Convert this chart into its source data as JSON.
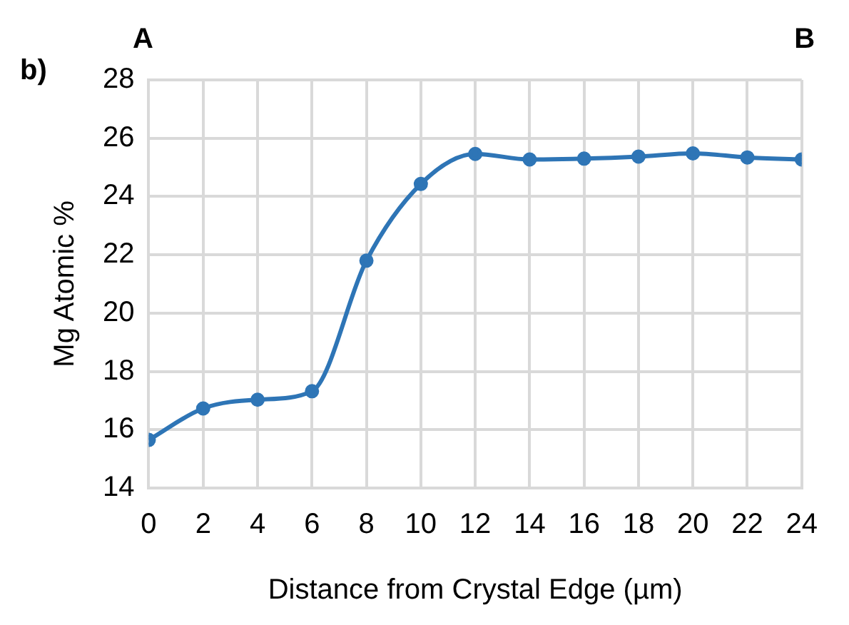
{
  "chart_data": {
    "type": "line",
    "xlabel": "Distance from Crystal Edge (µm)",
    "ylabel": "Mg Atomic %",
    "annotations": [
      "b)",
      "A",
      "B"
    ],
    "x": [
      0,
      2,
      4,
      6,
      8,
      10,
      12,
      14,
      16,
      18,
      20,
      22,
      24
    ],
    "series": [
      {
        "color": "#2e75b6",
        "values": [
          15.65,
          16.73,
          17.03,
          17.32,
          21.8,
          24.43,
          25.46,
          25.27,
          25.3,
          25.37,
          25.48,
          25.34,
          25.27
        ]
      }
    ],
    "xlim": [
      0,
      24
    ],
    "xticks": [
      0,
      2,
      4,
      6,
      8,
      10,
      12,
      14,
      16,
      18,
      20,
      22,
      24
    ],
    "ylim": [
      14,
      28
    ],
    "yticks": [
      14,
      16,
      18,
      20,
      22,
      24,
      26,
      28
    ],
    "grid": true,
    "legend": false,
    "marker": "circle",
    "line_style": "solid"
  }
}
